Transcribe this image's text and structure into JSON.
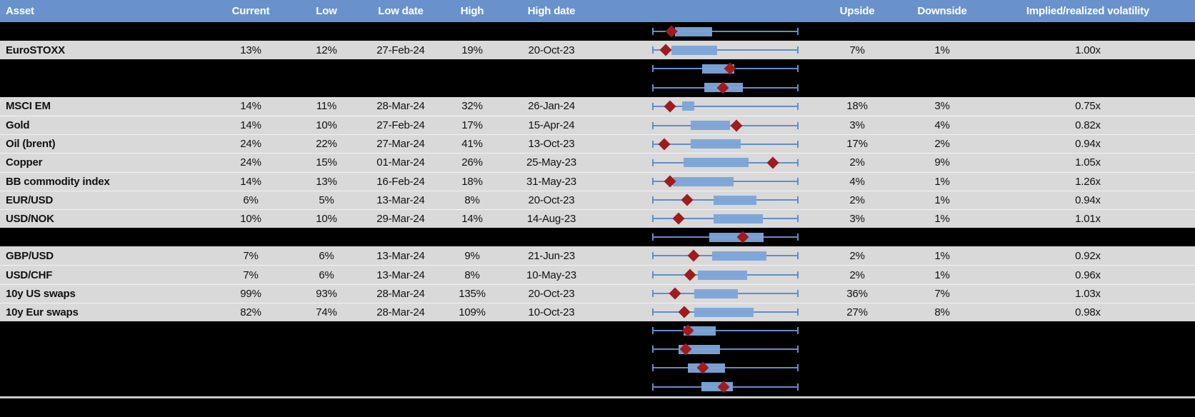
{
  "header": {
    "columns": [
      {
        "key": "asset",
        "label": "Asset"
      },
      {
        "key": "current",
        "label": "Current"
      },
      {
        "key": "low",
        "label": "Low"
      },
      {
        "key": "low_date",
        "label": "Low date"
      },
      {
        "key": "high",
        "label": "High"
      },
      {
        "key": "high_date",
        "label": "High date"
      },
      {
        "key": "chart",
        "label": ""
      },
      {
        "key": "upside",
        "label": "Upside"
      },
      {
        "key": "downside",
        "label": "Downside"
      },
      {
        "key": "implied_realized",
        "label": "Implied/realized volatility"
      }
    ]
  },
  "colors": {
    "header_bg": "#6992cd",
    "header_text": "#ffffff",
    "row_gray": "#d9d9d9",
    "row_black": "#000000",
    "box_fill": "#7da4d9",
    "whisker": "#628dc9",
    "diamond": "#9e1b1e",
    "divider": "#cbcbcb"
  },
  "rows": [
    {
      "kind": "chart",
      "bg": "black",
      "box": {
        "min": 0,
        "q1": 0.156,
        "q3": 0.41,
        "max": 1,
        "marker": 0.132
      }
    },
    {
      "kind": "data",
      "bg": "gray",
      "asset": "EuroSTOXX",
      "current": "13%",
      "low": "12%",
      "low_date": "27-Feb-24",
      "high": "19%",
      "high_date": "20-Oct-23",
      "upside": "7%",
      "downside": "1%",
      "implied_realized": "1.00x",
      "box": {
        "min": 0,
        "q1": 0.132,
        "q3": 0.444,
        "max": 1,
        "marker": 0.093
      }
    },
    {
      "kind": "chart",
      "bg": "black",
      "box": {
        "min": 0,
        "q1": 0.341,
        "q3": 0.561,
        "max": 1,
        "marker": 0.532
      }
    },
    {
      "kind": "chart",
      "bg": "black",
      "box": {
        "min": 0,
        "q1": 0.356,
        "q3": 0.62,
        "max": 1,
        "marker": 0.483
      }
    },
    {
      "kind": "data",
      "bg": "gray",
      "asset": "MSCI EM",
      "current": "14%",
      "low": "11%",
      "low_date": "28-Mar-24",
      "high": "32%",
      "high_date": "26-Jan-24",
      "upside": "18%",
      "downside": "3%",
      "implied_realized": "0.75x",
      "box": {
        "min": 0,
        "q1": 0.205,
        "q3": 0.288,
        "max": 1,
        "marker": 0.122
      }
    },
    {
      "kind": "data",
      "bg": "gray",
      "asset": "Gold",
      "current": "14%",
      "low": "10%",
      "low_date": "27-Feb-24",
      "high": "17%",
      "high_date": "15-Apr-24",
      "upside": "3%",
      "downside": "4%",
      "implied_realized": "0.82x",
      "box": {
        "min": 0,
        "q1": 0.263,
        "q3": 0.532,
        "max": 1,
        "marker": 0.576
      }
    },
    {
      "kind": "data",
      "bg": "gray",
      "asset": "Oil (brent)",
      "current": "24%",
      "low": "22%",
      "low_date": "27-Mar-24",
      "high": "41%",
      "high_date": "13-Oct-23",
      "upside": "17%",
      "downside": "2%",
      "implied_realized": "0.94x",
      "box": {
        "min": 0,
        "q1": 0.263,
        "q3": 0.605,
        "max": 1,
        "marker": 0.083
      }
    },
    {
      "kind": "data",
      "bg": "gray",
      "asset": "Copper",
      "current": "24%",
      "low": "15%",
      "low_date": "01-Mar-24",
      "high": "26%",
      "high_date": "25-May-23",
      "upside": "2%",
      "downside": "9%",
      "implied_realized": "1.05x",
      "box": {
        "min": 0,
        "q1": 0.215,
        "q3": 0.659,
        "max": 1,
        "marker": 0.824
      }
    },
    {
      "kind": "data",
      "bg": "gray",
      "asset": "BB commodity index",
      "current": "14%",
      "low": "13%",
      "low_date": "16-Feb-24",
      "high": "18%",
      "high_date": "31-May-23",
      "upside": "4%",
      "downside": "1%",
      "implied_realized": "1.26x",
      "box": {
        "min": 0,
        "q1": 0.141,
        "q3": 0.556,
        "max": 1,
        "marker": 0.122
      }
    },
    {
      "kind": "data",
      "bg": "gray",
      "asset": "EUR/USD",
      "current": "6%",
      "low": "5%",
      "low_date": "13-Mar-24",
      "high": "8%",
      "high_date": "20-Oct-23",
      "upside": "2%",
      "downside": "1%",
      "implied_realized": "0.94x",
      "box": {
        "min": 0,
        "q1": 0.42,
        "q3": 0.712,
        "max": 1,
        "marker": 0.239
      }
    },
    {
      "kind": "data",
      "bg": "gray",
      "asset": "USD/NOK",
      "current": "10%",
      "low": "10%",
      "low_date": "29-Mar-24",
      "high": "14%",
      "high_date": "14-Aug-23",
      "upside": "3%",
      "downside": "1%",
      "implied_realized": "1.01x",
      "box": {
        "min": 0,
        "q1": 0.42,
        "q3": 0.756,
        "max": 1,
        "marker": 0.18
      }
    },
    {
      "kind": "chart",
      "bg": "black",
      "box": {
        "min": 0,
        "q1": 0.39,
        "q3": 0.761,
        "max": 1,
        "marker": 0.62
      }
    },
    {
      "kind": "data",
      "bg": "gray",
      "asset": "GBP/USD",
      "current": "7%",
      "low": "6%",
      "low_date": "13-Mar-24",
      "high": "9%",
      "high_date": "21-Jun-23",
      "upside": "2%",
      "downside": "1%",
      "implied_realized": "0.92x",
      "box": {
        "min": 0,
        "q1": 0.41,
        "q3": 0.78,
        "max": 1,
        "marker": 0.283
      }
    },
    {
      "kind": "data",
      "bg": "gray",
      "asset": "USD/CHF",
      "current": "7%",
      "low": "6%",
      "low_date": "13-Mar-24",
      "high": "8%",
      "high_date": "10-May-23",
      "upside": "2%",
      "downside": "1%",
      "implied_realized": "0.96x",
      "box": {
        "min": 0,
        "q1": 0.312,
        "q3": 0.649,
        "max": 1,
        "marker": 0.259
      }
    },
    {
      "kind": "data",
      "bg": "gray",
      "asset": "10y US swaps",
      "current": "99%",
      "low": "93%",
      "low_date": "28-Mar-24",
      "high": "135%",
      "high_date": "20-Oct-23",
      "upside": "36%",
      "downside": "7%",
      "implied_realized": "1.03x",
      "box": {
        "min": 0,
        "q1": 0.288,
        "q3": 0.585,
        "max": 1,
        "marker": 0.156
      }
    },
    {
      "kind": "data",
      "bg": "gray",
      "asset": "10y Eur swaps",
      "current": "82%",
      "low": "74%",
      "low_date": "28-Mar-24",
      "high": "109%",
      "high_date": "10-Oct-23",
      "upside": "27%",
      "downside": "8%",
      "implied_realized": "0.98x",
      "box": {
        "min": 0,
        "q1": 0.288,
        "q3": 0.693,
        "max": 1,
        "marker": 0.22
      }
    },
    {
      "kind": "chart",
      "bg": "black",
      "box": {
        "min": 0,
        "q1": 0.215,
        "q3": 0.434,
        "max": 1,
        "marker": 0.244
      }
    },
    {
      "kind": "chart",
      "bg": "black",
      "box": {
        "min": 0,
        "q1": 0.18,
        "q3": 0.463,
        "max": 1,
        "marker": 0.229
      }
    },
    {
      "kind": "chart",
      "bg": "black",
      "box": {
        "min": 0,
        "q1": 0.244,
        "q3": 0.498,
        "max": 1,
        "marker": 0.346
      }
    },
    {
      "kind": "chart",
      "bg": "black",
      "box": {
        "min": 0,
        "q1": 0.337,
        "q3": 0.551,
        "max": 1,
        "marker": 0.488
      }
    }
  ],
  "chart_data": {
    "type": "boxplot",
    "orientation": "horizontal",
    "note_axis": "no axis labels shown; whiskers span full normalized 0-1 range per row; box = q1-q3; diamond marker = current level",
    "legend_position": "none",
    "grid": false,
    "series": [
      {
        "name": "row-1-unlabeled",
        "min": 0,
        "q1": 0.156,
        "q3": 0.41,
        "max": 1,
        "marker": 0.132
      },
      {
        "name": "EuroSTOXX",
        "min": 0,
        "q1": 0.132,
        "q3": 0.444,
        "max": 1,
        "marker": 0.093
      },
      {
        "name": "row-3-unlabeled",
        "min": 0,
        "q1": 0.341,
        "q3": 0.561,
        "max": 1,
        "marker": 0.532
      },
      {
        "name": "row-4-unlabeled",
        "min": 0,
        "q1": 0.356,
        "q3": 0.62,
        "max": 1,
        "marker": 0.483
      },
      {
        "name": "MSCI EM",
        "min": 0,
        "q1": 0.205,
        "q3": 0.288,
        "max": 1,
        "marker": 0.122
      },
      {
        "name": "Gold",
        "min": 0,
        "q1": 0.263,
        "q3": 0.532,
        "max": 1,
        "marker": 0.576
      },
      {
        "name": "Oil (brent)",
        "min": 0,
        "q1": 0.263,
        "q3": 0.605,
        "max": 1,
        "marker": 0.083
      },
      {
        "name": "Copper",
        "min": 0,
        "q1": 0.215,
        "q3": 0.659,
        "max": 1,
        "marker": 0.824
      },
      {
        "name": "BB commodity index",
        "min": 0,
        "q1": 0.141,
        "q3": 0.556,
        "max": 1,
        "marker": 0.122
      },
      {
        "name": "EUR/USD",
        "min": 0,
        "q1": 0.42,
        "q3": 0.712,
        "max": 1,
        "marker": 0.239
      },
      {
        "name": "USD/NOK",
        "min": 0,
        "q1": 0.42,
        "q3": 0.756,
        "max": 1,
        "marker": 0.18
      },
      {
        "name": "row-12-unlabeled",
        "min": 0,
        "q1": 0.39,
        "q3": 0.761,
        "max": 1,
        "marker": 0.62
      },
      {
        "name": "GBP/USD",
        "min": 0,
        "q1": 0.41,
        "q3": 0.78,
        "max": 1,
        "marker": 0.283
      },
      {
        "name": "USD/CHF",
        "min": 0,
        "q1": 0.312,
        "q3": 0.649,
        "max": 1,
        "marker": 0.259
      },
      {
        "name": "10y US swaps",
        "min": 0,
        "q1": 0.288,
        "q3": 0.585,
        "max": 1,
        "marker": 0.156
      },
      {
        "name": "10y Eur swaps",
        "min": 0,
        "q1": 0.288,
        "q3": 0.693,
        "max": 1,
        "marker": 0.22
      },
      {
        "name": "row-17-unlabeled",
        "min": 0,
        "q1": 0.215,
        "q3": 0.434,
        "max": 1,
        "marker": 0.244
      },
      {
        "name": "row-18-unlabeled",
        "min": 0,
        "q1": 0.18,
        "q3": 0.463,
        "max": 1,
        "marker": 0.229
      },
      {
        "name": "row-19-unlabeled",
        "min": 0,
        "q1": 0.244,
        "q3": 0.498,
        "max": 1,
        "marker": 0.346
      },
      {
        "name": "row-20-unlabeled",
        "min": 0,
        "q1": 0.337,
        "q3": 0.551,
        "max": 1,
        "marker": 0.488
      }
    ]
  }
}
